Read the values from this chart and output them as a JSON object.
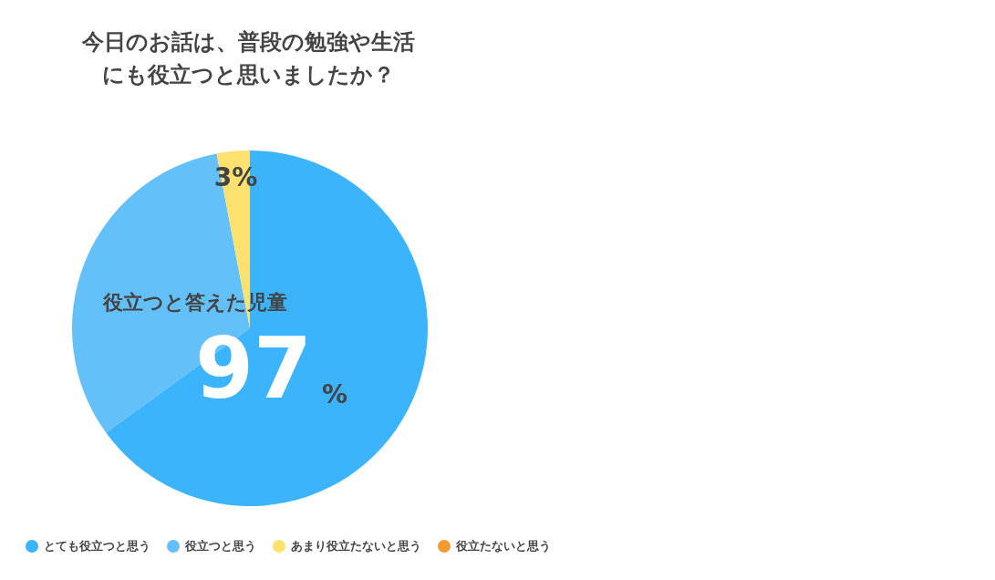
{
  "chart_data": {
    "type": "pie",
    "title": "今日のお話は、普段の勉強や生活にも役立つと思いましたか？",
    "categories": [
      "とても役立つと思う",
      "役立つと思う",
      "あまり役立たないと思う",
      "役立たないと思う"
    ],
    "values": [
      65,
      32,
      3,
      0
    ],
    "colors": [
      "#3bb3fd",
      "#63c0f9",
      "#fde16f",
      "#f29b31"
    ],
    "value_labels": [
      null,
      null,
      "3%",
      null
    ],
    "annotations": [
      "役立つと答えた児童",
      "97%"
    ],
    "legend": "bottom"
  }
}
